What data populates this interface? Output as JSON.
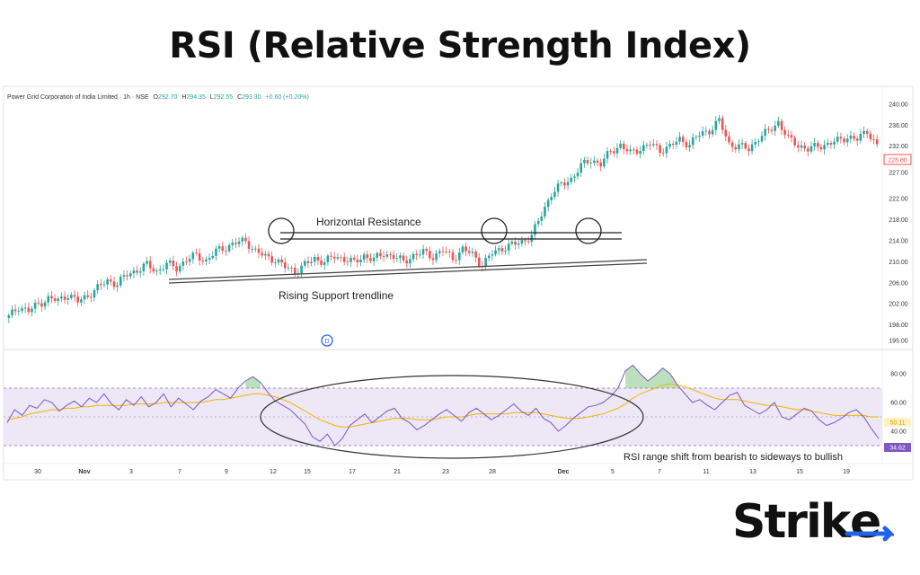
{
  "page_title": "RSI (Relative Strength Index)",
  "header": {
    "instrument": "Power Grid Corporation of India Limited · 1h · NSE",
    "o_label": "O",
    "o_value": "292.70",
    "h_label": "H",
    "h_value": "294.35",
    "l_label": "L",
    "l_value": "292.55",
    "c_label": "C",
    "c_value": "293.30",
    "change": "+0.60 (+0.20%)"
  },
  "annotations": {
    "horizontal_resistance": "Horizontal Resistance",
    "rising_support": "Rising Support trendline",
    "rsi_note": "RSI range shift from bearish to sideways to bullish"
  },
  "brand": {
    "text_main": "Strik",
    "text_accent": "e"
  },
  "colors": {
    "up": "#26a69a",
    "down": "#ef5350",
    "rsi_line": "#7e57c2",
    "rsi_ma": "#f4b400",
    "rsi_band": "#ede7f6",
    "brand_accent": "#1e63e9"
  },
  "event_marker": "D",
  "chart_data": [
    {
      "type": "candlestick",
      "yticks": [
        195,
        198,
        202,
        206,
        210,
        214,
        218,
        222,
        227,
        232,
        236,
        240
      ],
      "price_badge": "228.60",
      "ylim": [
        194,
        241
      ],
      "x_ticks": [
        "30",
        "Nov",
        "3",
        "7",
        "9",
        "12",
        "15",
        "17",
        "21",
        "23",
        "28",
        "Dec",
        "5",
        "7",
        "11",
        "13",
        "15",
        "19"
      ],
      "close_path": [
        [
          0,
          199.5
        ],
        [
          3,
          201.5
        ],
        [
          6,
          200.6
        ],
        [
          9,
          202.0
        ],
        [
          12,
          203.0
        ],
        [
          15,
          202.6
        ],
        [
          18,
          203.8
        ],
        [
          21,
          202.4
        ],
        [
          24,
          203.6
        ],
        [
          27,
          205.0
        ],
        [
          30,
          206.4
        ],
        [
          33,
          205.8
        ],
        [
          36,
          207.6
        ],
        [
          39,
          208.4
        ],
        [
          42,
          209.4
        ],
        [
          45,
          208.2
        ],
        [
          48,
          209.6
        ],
        [
          51,
          208.8
        ],
        [
          54,
          210.4
        ],
        [
          57,
          211.2
        ],
        [
          60,
          210.2
        ],
        [
          63,
          212.0
        ],
        [
          66,
          212.8
        ],
        [
          69,
          213.6
        ],
        [
          72,
          214.0
        ],
        [
          75,
          212.0
        ],
        [
          78,
          211.0
        ],
        [
          81,
          210.4
        ],
        [
          84,
          209.0
        ],
        [
          87,
          208.2
        ],
        [
          90,
          209.4
        ],
        [
          93,
          210.6
        ],
        [
          96,
          210.0
        ],
        [
          99,
          211.0
        ],
        [
          102,
          210.6
        ],
        [
          105,
          209.8
        ],
        [
          108,
          211.2
        ],
        [
          111,
          210.4
        ],
        [
          114,
          211.6
        ],
        [
          117,
          211.0
        ],
        [
          120,
          210.0
        ],
        [
          123,
          211.2
        ],
        [
          126,
          211.8
        ],
        [
          129,
          211.0
        ],
        [
          132,
          212.2
        ],
        [
          135,
          210.6
        ],
        [
          138,
          212.4
        ],
        [
          141,
          211.4
        ],
        [
          144,
          209.4
        ],
        [
          147,
          211.6
        ],
        [
          150,
          212.6
        ],
        [
          153,
          213.2
        ],
        [
          156,
          213.8
        ],
        [
          159,
          215.0
        ],
        [
          162,
          219.0
        ],
        [
          165,
          223.0
        ],
        [
          168,
          224.6
        ],
        [
          171,
          225.8
        ],
        [
          174,
          228.2
        ],
        [
          177,
          229.4
        ],
        [
          180,
          228.6
        ],
        [
          183,
          231.0
        ],
        [
          186,
          232.2
        ],
        [
          189,
          230.6
        ],
        [
          192,
          231.6
        ],
        [
          195,
          232.4
        ],
        [
          198,
          231.2
        ],
        [
          201,
          232.0
        ],
        [
          204,
          233.2
        ],
        [
          207,
          232.4
        ],
        [
          210,
          234.2
        ],
        [
          213,
          235.0
        ],
        [
          216,
          236.8
        ],
        [
          219,
          232.4
        ],
        [
          222,
          232.0
        ],
        [
          225,
          231.4
        ],
        [
          228,
          233.6
        ],
        [
          231,
          234.8
        ],
        [
          234,
          236.6
        ],
        [
          237,
          233.4
        ],
        [
          240,
          232.2
        ],
        [
          243,
          231.4
        ],
        [
          246,
          232.0
        ],
        [
          249,
          232.4
        ],
        [
          252,
          233.0
        ],
        [
          255,
          233.8
        ],
        [
          258,
          233.2
        ],
        [
          261,
          235.0
        ],
        [
          264,
          232.0
        ]
      ]
    },
    {
      "type": "line",
      "title": "RSI",
      "yticks": [
        40,
        60,
        80
      ],
      "band": [
        30,
        70
      ],
      "badges": [
        "50.11",
        "34.62"
      ],
      "ylim": [
        20,
        90
      ],
      "series": [
        {
          "values": [
            46,
            55,
            51,
            58,
            56,
            62,
            60,
            54,
            58,
            61,
            57,
            63,
            60,
            66,
            59,
            55,
            62,
            58,
            64,
            57,
            60,
            66,
            57,
            63,
            59,
            55,
            61,
            64,
            69,
            66,
            63,
            70,
            75,
            78,
            74,
            67,
            61,
            58,
            55,
            50,
            45,
            36,
            33,
            38,
            30,
            35,
            44,
            48,
            52,
            46,
            50,
            54,
            56,
            49,
            46,
            41,
            44,
            48,
            52,
            55,
            51,
            47,
            53,
            56,
            52,
            48,
            51,
            55,
            59,
            54,
            51,
            56,
            49,
            46,
            40,
            44,
            49,
            53,
            57,
            58,
            60,
            64,
            70,
            82,
            86,
            80,
            75,
            79,
            84,
            80,
            72,
            66,
            60,
            62,
            58,
            55,
            60,
            65,
            67,
            58,
            55,
            52,
            55,
            60,
            50,
            48,
            52,
            56,
            54,
            48,
            44,
            46,
            49,
            53,
            55,
            50,
            42,
            35
          ]
        },
        {
          "values": [
            48,
            49,
            50,
            52,
            53,
            54,
            55,
            55,
            56,
            56,
            57,
            57,
            58,
            58,
            58,
            58,
            58,
            59,
            59,
            59,
            59,
            60,
            60,
            60,
            60,
            60,
            60,
            61,
            62,
            62,
            63,
            64,
            65,
            66,
            66,
            65,
            64,
            62,
            60,
            57,
            54,
            51,
            48,
            46,
            44,
            43,
            43,
            44,
            45,
            46,
            47,
            48,
            49,
            49,
            49,
            48,
            48,
            48,
            49,
            50,
            50,
            50,
            51,
            52,
            52,
            52,
            52,
            52,
            53,
            53,
            53,
            53,
            52,
            51,
            50,
            49,
            49,
            49,
            50,
            51,
            52,
            54,
            56,
            59,
            63,
            66,
            68,
            70,
            72,
            73,
            72,
            71,
            69,
            67,
            65,
            63,
            62,
            62,
            62,
            61,
            60,
            59,
            58,
            58,
            57,
            56,
            55,
            55,
            54,
            53,
            52,
            51,
            51,
            51,
            51,
            51,
            50,
            50
          ]
        }
      ]
    }
  ]
}
